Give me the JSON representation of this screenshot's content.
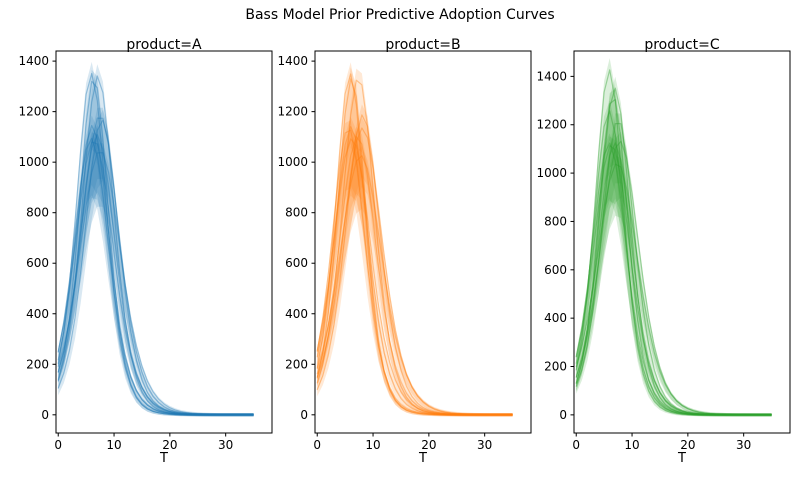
{
  "figure": {
    "title": "Bass Model Prior Predictive Adoption Curves",
    "background_color": "#ffffff"
  },
  "chart_data": {
    "type": "line",
    "title": "Bass Model Prior Predictive Adoption Curves",
    "model": "bass adoption curve: y(t) = m*((p+q)^2/p)*exp(-(p+q)t)/(1+(q/p)exp(-(p+q)t))^2",
    "t_start": 0,
    "t_end": 35,
    "t_step": 1,
    "xlim": [
      -0.4,
      38.3
    ],
    "xticks": [
      0,
      10,
      20,
      30
    ],
    "yticks": [
      0,
      200,
      400,
      600,
      800,
      1000,
      1200,
      1400
    ],
    "grid": false,
    "legend": "none",
    "band_style": {
      "upper_scale": 1.03,
      "lower_scale": 0.8,
      "pad": 6,
      "fill_alpha": 0.17
    },
    "line_style": {
      "alpha": 0.4,
      "width": 1.2
    },
    "subplots": [
      {
        "title": "product=A",
        "xlabel": "T",
        "color": "#1f77b4",
        "ylim": [
          -72,
          1440
        ],
        "curves": [
          {
            "p": 0.021,
            "q": 0.52,
            "m": 9600
          },
          {
            "p": 0.013,
            "q": 0.5,
            "m": 10200
          },
          {
            "p": 0.024,
            "q": 0.46,
            "m": 9000
          },
          {
            "p": 0.016,
            "q": 0.42,
            "m": 10500
          },
          {
            "p": 0.028,
            "q": 0.44,
            "m": 8800
          },
          {
            "p": 0.011,
            "q": 0.47,
            "m": 9500
          },
          {
            "p": 0.019,
            "q": 0.38,
            "m": 10000
          },
          {
            "p": 0.015,
            "q": 0.55,
            "m": 9200
          },
          {
            "p": 0.026,
            "q": 0.4,
            "m": 9600
          },
          {
            "p": 0.018,
            "q": 0.44,
            "m": 9300
          }
        ]
      },
      {
        "title": "product=B",
        "xlabel": "T",
        "color": "#ff7f0e",
        "ylim": [
          -72,
          1440
        ],
        "curves": [
          {
            "p": 0.02,
            "q": 0.54,
            "m": 9300
          },
          {
            "p": 0.012,
            "q": 0.49,
            "m": 10400
          },
          {
            "p": 0.025,
            "q": 0.45,
            "m": 9100
          },
          {
            "p": 0.014,
            "q": 0.4,
            "m": 10600
          },
          {
            "p": 0.029,
            "q": 0.47,
            "m": 8600
          },
          {
            "p": 0.01,
            "q": 0.46,
            "m": 9900
          },
          {
            "p": 0.018,
            "q": 0.37,
            "m": 10100
          },
          {
            "p": 0.016,
            "q": 0.56,
            "m": 9000
          },
          {
            "p": 0.027,
            "q": 0.41,
            "m": 9400
          },
          {
            "p": 0.017,
            "q": 0.43,
            "m": 9500
          }
        ]
      },
      {
        "title": "product=C",
        "xlabel": "T",
        "color": "#2ca02c",
        "ylim": [
          -75,
          1505
        ],
        "curves": [
          {
            "p": 0.019,
            "q": 0.55,
            "m": 9700
          },
          {
            "p": 0.013,
            "q": 0.52,
            "m": 9900
          },
          {
            "p": 0.023,
            "q": 0.5,
            "m": 9200
          },
          {
            "p": 0.015,
            "q": 0.41,
            "m": 10300
          },
          {
            "p": 0.027,
            "q": 0.45,
            "m": 8900
          },
          {
            "p": 0.012,
            "q": 0.48,
            "m": 9700
          },
          {
            "p": 0.02,
            "q": 0.38,
            "m": 9900
          },
          {
            "p": 0.014,
            "q": 0.54,
            "m": 9300
          },
          {
            "p": 0.025,
            "q": 0.42,
            "m": 9500
          },
          {
            "p": 0.017,
            "q": 0.46,
            "m": 9100
          }
        ]
      }
    ]
  }
}
